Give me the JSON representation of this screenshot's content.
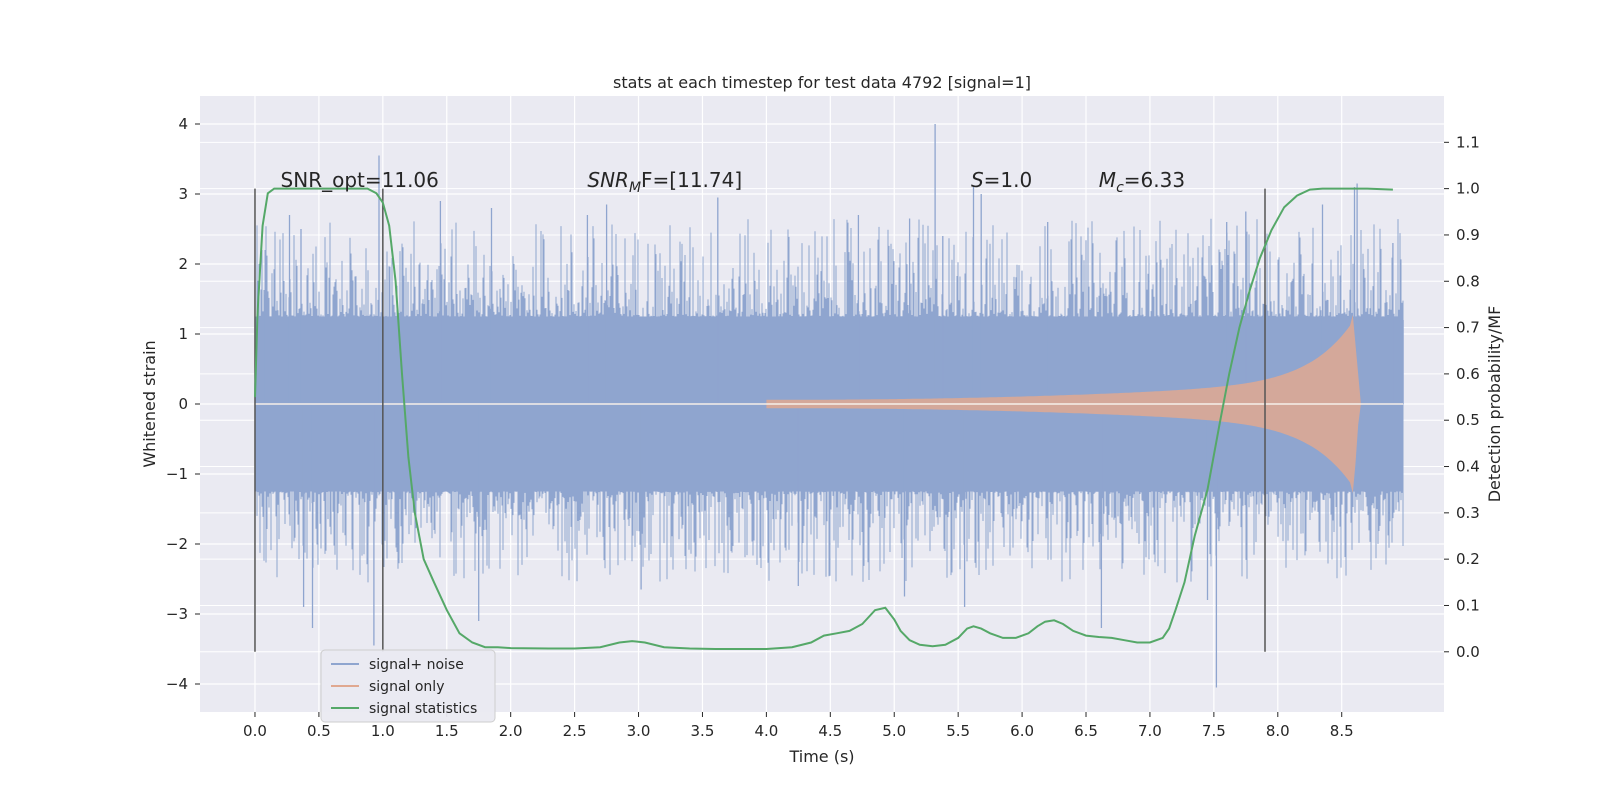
{
  "chart_data": {
    "type": "line",
    "title": "stats at each timestep for test data 4792 [signal=1]",
    "xlabel": "Time (s)",
    "ylabel": "Whitened strain",
    "y2label": "Detection probability/MF",
    "xlim": [
      -0.43,
      9.3
    ],
    "ylim": [
      -4.4,
      4.4
    ],
    "y2lim": [
      -0.13,
      1.2
    ],
    "x_ticks": [
      "0.0",
      "0.5",
      "1.0",
      "1.5",
      "2.0",
      "2.5",
      "3.0",
      "3.5",
      "4.0",
      "4.5",
      "5.0",
      "5.5",
      "6.0",
      "6.5",
      "7.0",
      "7.5",
      "8.0",
      "8.5"
    ],
    "y_ticks": [
      "4",
      "3",
      "2",
      "1",
      "0",
      "−1",
      "−2",
      "−3",
      "−4"
    ],
    "y2_ticks": [
      "1.1",
      "1.0",
      "0.9",
      "0.8",
      "0.7",
      "0.6",
      "0.5",
      "0.4",
      "0.3",
      "0.2",
      "0.1",
      "0.0"
    ],
    "grid": true,
    "legend_position": "lower-left",
    "annotations": [
      {
        "prefix": "SNR_opt=11.06",
        "sub": "",
        "suffix": "",
        "x": 0.2
      },
      {
        "prefix": "SNR",
        "sub": "M",
        "suffix": "F=[11.74]",
        "x": 2.6
      },
      {
        "prefix": "S",
        "sub": "",
        "suffix": "=1.0",
        "x": 5.6
      },
      {
        "prefix": "M",
        "sub": "c",
        "suffix": "=6.33",
        "x": 6.6
      }
    ],
    "annotation_y": 3.2,
    "vertical_markers": [
      0.0,
      1.0,
      7.9
    ],
    "series": [
      {
        "name": "signal+ noise",
        "color": "#8fa5cf",
        "kind": "noise",
        "x_range": [
          0.0,
          8.98
        ],
        "band": 1.25,
        "spikes": [
          {
            "x": 0.02,
            "y": 1.7
          },
          {
            "x": 0.08,
            "y": 2.2
          },
          {
            "x": 0.27,
            "y": 2.7
          },
          {
            "x": 0.36,
            "y": 2.5
          },
          {
            "x": 0.45,
            "y": -3.2
          },
          {
            "x": 0.38,
            "y": -2.9
          },
          {
            "x": 0.93,
            "y": -3.45
          },
          {
            "x": 0.97,
            "y": 3.55
          },
          {
            "x": 1.45,
            "y": 2.9
          },
          {
            "x": 1.75,
            "y": -3.1
          },
          {
            "x": 1.85,
            "y": 2.8
          },
          {
            "x": 2.6,
            "y": 2.7
          },
          {
            "x": 2.75,
            "y": 2.85
          },
          {
            "x": 3.02,
            "y": -2.65
          },
          {
            "x": 3.62,
            "y": 2.95
          },
          {
            "x": 4.25,
            "y": -2.6
          },
          {
            "x": 4.72,
            "y": 2.7
          },
          {
            "x": 5.08,
            "y": -2.75
          },
          {
            "x": 5.12,
            "y": 2.65
          },
          {
            "x": 5.32,
            "y": 4.0
          },
          {
            "x": 5.38,
            "y": 2.4
          },
          {
            "x": 5.55,
            "y": -2.9
          },
          {
            "x": 5.62,
            "y": 3.1
          },
          {
            "x": 5.68,
            "y": 3.0
          },
          {
            "x": 6.2,
            "y": 2.6
          },
          {
            "x": 6.62,
            "y": -3.2
          },
          {
            "x": 7.45,
            "y": -2.8
          },
          {
            "x": 7.52,
            "y": -4.05
          },
          {
            "x": 7.6,
            "y": 2.6
          },
          {
            "x": 7.75,
            "y": 2.75
          },
          {
            "x": 8.35,
            "y": 2.85
          },
          {
            "x": 8.6,
            "y": 3.1
          },
          {
            "x": 8.62,
            "y": 3.15
          },
          {
            "x": 8.9,
            "y": 2.3
          },
          {
            "x": 8.98,
            "y": 1.2
          }
        ]
      },
      {
        "name": "signal only",
        "color": "#e0a890",
        "kind": "chirp",
        "x_range": [
          4.0,
          8.65
        ],
        "amplitude": [
          0.0,
          1.4
        ]
      },
      {
        "name": "signal statistics",
        "color": "#55a868",
        "axis": "right",
        "x": [
          0.0,
          0.02,
          0.06,
          0.1,
          0.15,
          0.2,
          0.3,
          0.5,
          0.7,
          0.8,
          0.88,
          0.95,
          1.0,
          1.05,
          1.1,
          1.15,
          1.2,
          1.25,
          1.32,
          1.4,
          1.5,
          1.6,
          1.7,
          1.8,
          1.9,
          2.0,
          2.3,
          2.5,
          2.7,
          2.85,
          2.95,
          3.05,
          3.2,
          3.4,
          3.6,
          3.8,
          4.0,
          4.2,
          4.35,
          4.45,
          4.55,
          4.65,
          4.75,
          4.85,
          4.93,
          5.0,
          5.05,
          5.12,
          5.2,
          5.3,
          5.4,
          5.5,
          5.57,
          5.62,
          5.68,
          5.75,
          5.85,
          5.95,
          6.05,
          6.12,
          6.18,
          6.25,
          6.32,
          6.4,
          6.5,
          6.6,
          6.7,
          6.8,
          6.9,
          7.0,
          7.1,
          7.15,
          7.2,
          7.27,
          7.35,
          7.45,
          7.55,
          7.62,
          7.7,
          7.78,
          7.86,
          7.95,
          8.05,
          8.15,
          8.25,
          8.35,
          8.5,
          8.7,
          8.9
        ],
        "values": [
          0.55,
          0.73,
          0.92,
          0.99,
          1.0,
          1.0,
          1.0,
          1.0,
          1.0,
          1.0,
          1.0,
          0.99,
          0.97,
          0.92,
          0.8,
          0.6,
          0.42,
          0.3,
          0.2,
          0.15,
          0.09,
          0.04,
          0.02,
          0.01,
          0.01,
          0.008,
          0.007,
          0.007,
          0.01,
          0.02,
          0.023,
          0.02,
          0.01,
          0.007,
          0.006,
          0.006,
          0.006,
          0.01,
          0.02,
          0.035,
          0.04,
          0.045,
          0.06,
          0.09,
          0.095,
          0.07,
          0.045,
          0.025,
          0.015,
          0.012,
          0.015,
          0.03,
          0.05,
          0.055,
          0.05,
          0.04,
          0.03,
          0.03,
          0.04,
          0.055,
          0.065,
          0.068,
          0.06,
          0.045,
          0.035,
          0.032,
          0.03,
          0.025,
          0.02,
          0.02,
          0.03,
          0.05,
          0.09,
          0.15,
          0.25,
          0.35,
          0.5,
          0.6,
          0.7,
          0.78,
          0.85,
          0.91,
          0.96,
          0.985,
          0.998,
          1.0,
          1.0,
          1.0,
          0.998
        ]
      }
    ]
  }
}
